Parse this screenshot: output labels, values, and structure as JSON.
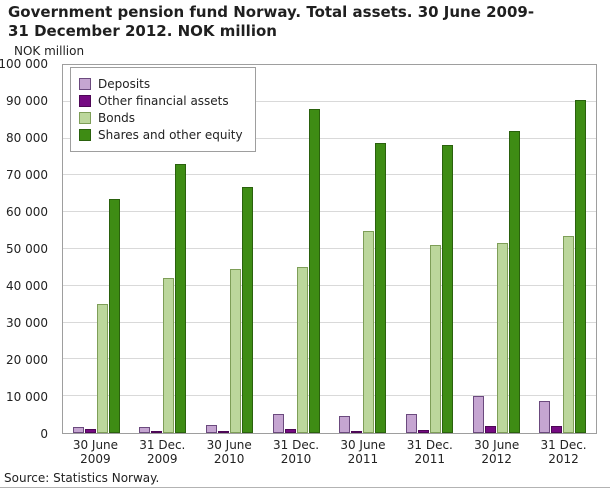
{
  "title_line1": "Government pension fund Norway. Total assets. 30 June 2009-",
  "title_line2": "31 December 2012. NOK million",
  "y_axis_title": "NOK million",
  "source": "Source: Statistics Norway.",
  "chart_data": {
    "type": "bar",
    "title": "Government pension fund Norway. Total assets. 30 June 2009-31 December 2012. NOK million",
    "xlabel": "",
    "ylabel": "NOK million",
    "ylim": [
      0,
      100000
    ],
    "ytick_step": 10000,
    "grid": true,
    "legend_position": "top-left",
    "categories": [
      "30 June 2009",
      "31 Dec. 2009",
      "30 June 2010",
      "31 Dec. 2010",
      "30 June 2011",
      "31 Dec. 2011",
      "30 June 2012",
      "31 Dec. 2012"
    ],
    "series": [
      {
        "name": "Deposits",
        "color": "#c5a5d1",
        "border": "#6b4a7e",
        "values": [
          1500,
          1700,
          2200,
          5200,
          4500,
          5100,
          10000,
          8700
        ]
      },
      {
        "name": "Other financial assets",
        "color": "#750a82",
        "border": "#4d0756",
        "values": [
          1000,
          600,
          400,
          1000,
          500,
          900,
          1800,
          2000
        ]
      },
      {
        "name": "Bonds",
        "color": "#bcd79c",
        "border": "#7e9e58",
        "values": [
          35000,
          42000,
          44500,
          45000,
          55000,
          51000,
          51500,
          53500
        ]
      },
      {
        "name": "Shares and other equity",
        "color": "#3e8c14",
        "border": "#2a610d",
        "values": [
          63500,
          73000,
          66800,
          88000,
          78700,
          78300,
          82200,
          90500
        ]
      }
    ]
  }
}
